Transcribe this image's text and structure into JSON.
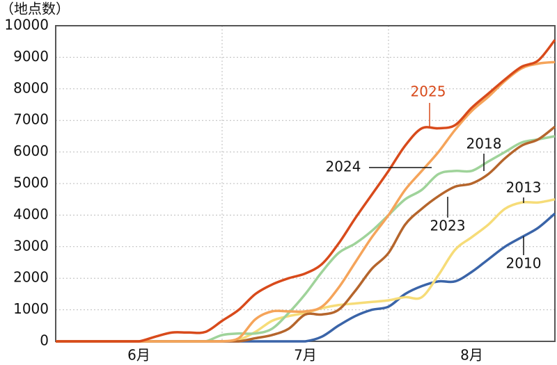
{
  "chart_data": {
    "type": "line",
    "y_label": "（地点数）",
    "categories": [
      "6月",
      "7月",
      "8月"
    ],
    "x": [
      0,
      0.1,
      0.2,
      0.3,
      0.4,
      0.5,
      0.6,
      0.7,
      0.8,
      0.9,
      1.0,
      1.1,
      1.2,
      1.3,
      1.4,
      1.5,
      1.6,
      1.7,
      1.8,
      1.9,
      2.0,
      2.1,
      2.2,
      2.3,
      2.4,
      2.5,
      2.6,
      2.7,
      2.8,
      2.9,
      3.0
    ],
    "xlim": [
      0,
      3
    ],
    "ylim": [
      0,
      10000
    ],
    "yticks": [
      0,
      1000,
      2000,
      3000,
      4000,
      5000,
      6000,
      7000,
      8000,
      9000,
      10000
    ],
    "grid": true,
    "series": [
      {
        "name": "2010",
        "color": "#3a64a8",
        "values": [
          0,
          0,
          0,
          0,
          0,
          0,
          0,
          0,
          0,
          0,
          0,
          0,
          0,
          0,
          0,
          0,
          150,
          500,
          800,
          1000,
          1100,
          1500,
          1750,
          1900,
          1900,
          2200,
          2600,
          3000,
          3300,
          3600,
          4050
        ]
      },
      {
        "name": "2013",
        "color": "#f6dc78",
        "values": [
          0,
          0,
          0,
          0,
          0,
          0,
          0,
          0,
          0,
          0,
          0,
          50,
          300,
          650,
          800,
          900,
          1050,
          1150,
          1200,
          1250,
          1300,
          1400,
          1400,
          2100,
          2900,
          3300,
          3700,
          4200,
          4400,
          4400,
          4500
        ]
      },
      {
        "name": "2018",
        "color": "#9fd39a",
        "values": [
          0,
          0,
          0,
          0,
          0,
          0,
          0,
          0,
          0,
          0,
          200,
          250,
          250,
          400,
          900,
          1500,
          2200,
          2800,
          3100,
          3500,
          4000,
          4500,
          4800,
          5300,
          5400,
          5400,
          5700,
          6000,
          6300,
          6400,
          6500
        ]
      },
      {
        "name": "2023",
        "color": "#b5652c",
        "values": [
          0,
          0,
          0,
          0,
          0,
          0,
          0,
          0,
          0,
          0,
          0,
          0,
          100,
          200,
          400,
          850,
          850,
          1000,
          1600,
          2300,
          2800,
          3700,
          4200,
          4600,
          4900,
          5000,
          5300,
          5800,
          6200,
          6400,
          6800
        ]
      },
      {
        "name": "2024",
        "color": "#f5a45a",
        "values": [
          0,
          0,
          0,
          0,
          0,
          0,
          0,
          0,
          0,
          0,
          0,
          100,
          700,
          950,
          950,
          950,
          1100,
          1700,
          2500,
          3300,
          4000,
          4800,
          5400,
          6000,
          6700,
          7300,
          7750,
          8250,
          8650,
          8800,
          8850
        ]
      },
      {
        "name": "2025",
        "color": "#d84a1b",
        "values": [
          0,
          0,
          0,
          0,
          0,
          0,
          150,
          280,
          280,
          300,
          650,
          1000,
          1500,
          1800,
          2000,
          2150,
          2450,
          3100,
          3900,
          4650,
          5400,
          6200,
          6750,
          6750,
          6850,
          7400,
          7850,
          8300,
          8700,
          8900,
          9550
        ]
      }
    ]
  }
}
